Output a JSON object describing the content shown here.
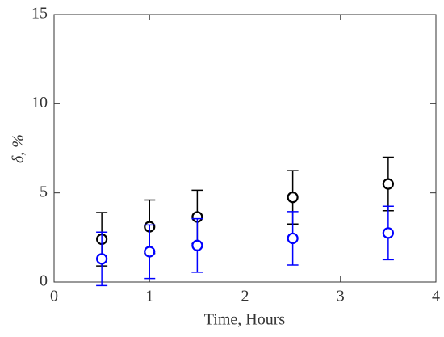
{
  "chart_data": {
    "type": "scatter",
    "xlabel": "Time, Hours",
    "ylabel": "δ, %",
    "xlim": [
      0,
      4
    ],
    "xticks": [
      0,
      1,
      2,
      3,
      4
    ],
    "ylim": [
      0,
      15
    ],
    "yticks": [
      0,
      5,
      10,
      15
    ],
    "series": [
      {
        "color": "#000000",
        "x": [
          0.5,
          1,
          1.5,
          2.5,
          3.5
        ],
        "values": [
          2.4,
          3.1,
          3.65,
          4.75,
          5.5
        ],
        "errors": [
          1.5,
          1.5,
          1.5,
          1.5,
          1.5
        ]
      },
      {
        "color": "#0000ff",
        "x": [
          0.5,
          1,
          1.5,
          2.5,
          3.5
        ],
        "values": [
          1.3,
          1.7,
          2.05,
          2.45,
          2.75
        ],
        "errors": [
          1.5,
          1.5,
          1.5,
          1.5,
          1.5
        ]
      }
    ]
  }
}
